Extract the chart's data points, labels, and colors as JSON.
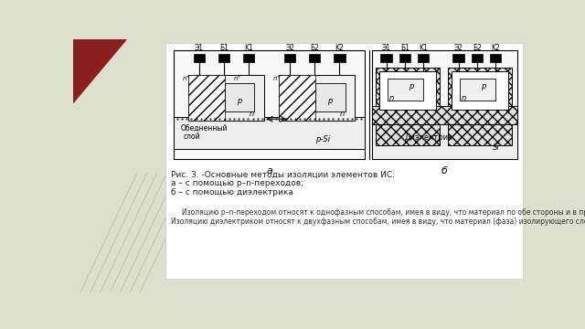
{
  "bg_color": "#dde0cc",
  "slide_bg": "#f0f2e8",
  "white_box_color": "#ffffff",
  "caption_line1": "Рис. 3. -Основные методы изоляции элементов ИС:",
  "caption_line2": "а – с помощью р–n-переходов;",
  "caption_line3": "б – с помощью диэлектрика",
  "body_line1": "     Изоляцию р–n-переходом относят к однофазным способам, имея в виду, что материал по обе стороны и в пределах изолирующего слоя один и тот же – кремний.",
  "body_line2": "Изоляцию диэлектриком относят к двухфазным способам, имея в виду, что материал (фаза) изолирующего слоя отличается от материала подложки – кремния.",
  "label_a": "а",
  "label_b": "б",
  "red_tri_color": "#8b2020",
  "gray_line_color": "#999988"
}
